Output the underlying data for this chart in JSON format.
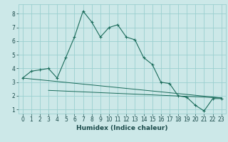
{
  "title": "",
  "xlabel": "Humidex (Indice chaleur)",
  "background_color": "#cce8e8",
  "grid_color": "#9acfcf",
  "line_color": "#1a6b5a",
  "xlim": [
    -0.5,
    23.5
  ],
  "ylim": [
    0.7,
    8.7
  ],
  "xticks": [
    0,
    1,
    2,
    3,
    4,
    5,
    6,
    7,
    8,
    9,
    10,
    11,
    12,
    13,
    14,
    15,
    16,
    17,
    18,
    19,
    20,
    21,
    22,
    23
  ],
  "yticks": [
    1,
    2,
    3,
    4,
    5,
    6,
    7,
    8
  ],
  "line1_x": [
    0,
    1,
    2,
    3,
    4,
    5,
    6,
    7,
    8,
    9,
    10,
    11,
    12,
    13,
    14,
    15,
    16,
    17,
    18,
    19,
    20,
    21,
    22,
    23
  ],
  "line1_y": [
    3.3,
    3.8,
    3.9,
    4.0,
    3.3,
    4.8,
    6.3,
    8.2,
    7.4,
    6.3,
    7.0,
    7.2,
    6.3,
    6.1,
    4.8,
    4.3,
    3.0,
    2.9,
    2.0,
    1.9,
    1.3,
    0.9,
    1.8,
    1.8
  ],
  "line2_x": [
    3,
    23
  ],
  "line2_y": [
    2.4,
    1.85
  ],
  "line3_x": [
    0,
    23
  ],
  "line3_y": [
    3.3,
    1.85
  ],
  "xlabel_fontsize": 6.5,
  "tick_fontsize": 5.5
}
